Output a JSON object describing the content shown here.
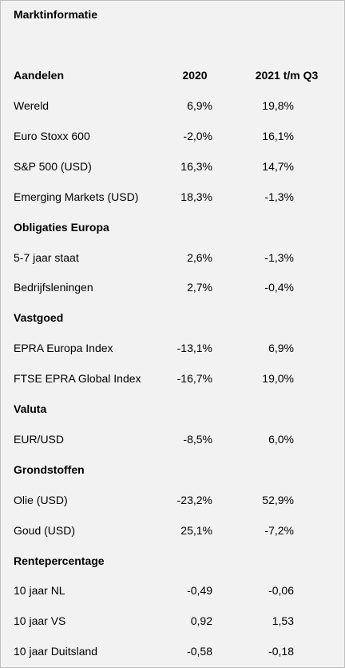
{
  "title": "Marktinformatie",
  "table": {
    "header": [
      "Aandelen",
      "2020",
      "2021 t/m Q3"
    ],
    "rows": [
      [
        "Wereld",
        "6,9%",
        "19,8%"
      ],
      [
        "Euro Stoxx 600",
        "-2,0%",
        "16,1%"
      ],
      [
        "S&P 500 (USD)",
        "16,3%",
        "14,7%"
      ],
      [
        "Emerging Markets (USD)",
        "18,3%",
        "-1,3%"
      ],
      [
        "Obligaties Europa"
      ],
      [
        "5-7 jaar staat",
        "2,6%",
        "-1,3%"
      ],
      [
        "Bedrijfsleningen",
        "2,7%",
        "-0,4%"
      ],
      [
        "Vastgoed"
      ],
      [
        "EPRA Europa Index",
        "-13,1%",
        "6,9%"
      ],
      [
        "FTSE EPRA Global Index",
        "-16,7%",
        "19,0%"
      ],
      [
        "Valuta"
      ],
      [
        "EUR/USD",
        "-8,5%",
        "6,0%"
      ],
      [
        "Grondstoffen"
      ],
      [
        "Olie (USD)",
        "-23,2%",
        "52,9%"
      ],
      [
        "Goud (USD)",
        "25,1%",
        "-7,2%"
      ],
      [
        "Rentepercentage"
      ],
      [
        "10 jaar NL",
        "-0,49",
        "-0,06"
      ],
      [
        "10 jaar VS",
        "0,92",
        "1,53"
      ],
      [
        "10 jaar Duitsland",
        "-0,58",
        "-0,18"
      ]
    ]
  }
}
